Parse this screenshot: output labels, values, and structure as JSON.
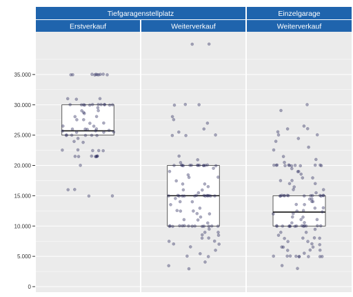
{
  "chart_data": {
    "type": "box-jitter",
    "title": "",
    "xlabel": "",
    "ylabel": "",
    "ylim": [
      0,
      40000
    ],
    "y_ticks": [
      {
        "value": 0,
        "label": "0"
      },
      {
        "value": 5000,
        "label": "5.000"
      },
      {
        "value": 10000,
        "label": "10.000"
      },
      {
        "value": 15000,
        "label": "15.000"
      },
      {
        "value": 20000,
        "label": "20.000"
      },
      {
        "value": 25000,
        "label": "25.000"
      },
      {
        "value": 30000,
        "label": "30.000"
      },
      {
        "value": 35000,
        "label": "35.000"
      }
    ],
    "groups": [
      {
        "name": "Tiefgaragenstellplatz",
        "panels": [
          "Erstverkauf",
          "Weiterverkauf"
        ]
      },
      {
        "name": "Einzelgarage",
        "panels": [
          "Weiterverkauf"
        ]
      }
    ],
    "panels": [
      {
        "group": "Tiefgaragenstellplatz",
        "label": "Erstverkauf",
        "box": {
          "q1": 25000,
          "median": 25700,
          "q3": 30000
        },
        "points": [
          35000,
          35000,
          35000,
          35000,
          35000,
          35000,
          35000,
          35000,
          35000,
          35000,
          31000,
          31000,
          30900,
          30000,
          30000,
          30000,
          30000,
          30000,
          30000,
          30000,
          30000,
          30000,
          30000,
          30000,
          30000,
          29500,
          29000,
          29000,
          28800,
          28500,
          28000,
          28000,
          27500,
          27500,
          27000,
          27000,
          26500,
          26500,
          26000,
          26000,
          26000,
          26000,
          25800,
          25700,
          25700,
          25500,
          25500,
          25500,
          25000,
          25000,
          25000,
          25000,
          25000,
          25000,
          24500,
          24000,
          23800,
          22500,
          22500,
          22500,
          22500,
          22500,
          21500,
          21500,
          21500,
          21500,
          21500,
          21500,
          21500,
          21500,
          20000,
          16000,
          16000,
          15000,
          15000
        ]
      },
      {
        "group": "Tiefgaragenstellplatz",
        "label": "Weiterverkauf",
        "box": {
          "q1": 10000,
          "median": 15000,
          "q3": 20000
        },
        "points": [
          40000,
          40000,
          30000,
          30000,
          30000,
          28000,
          27500,
          27000,
          26000,
          25500,
          25000,
          25000,
          25000,
          21500,
          21000,
          20500,
          20000,
          20000,
          20000,
          20000,
          20000,
          20000,
          20000,
          20000,
          20000,
          20000,
          20000,
          20000,
          20000,
          20000,
          19500,
          19000,
          18500,
          18000,
          18000,
          17500,
          17000,
          17000,
          16500,
          16000,
          16000,
          15500,
          15000,
          15000,
          15000,
          15000,
          15000,
          15000,
          15000,
          15000,
          15000,
          15000,
          15000,
          15000,
          15000,
          15000,
          14500,
          14000,
          14000,
          13500,
          13000,
          12500,
          12500,
          12500,
          12000,
          12000,
          11500,
          11000,
          11000,
          10500,
          10000,
          10000,
          10000,
          10000,
          10000,
          10000,
          10000,
          10000,
          10000,
          10000,
          10000,
          10000,
          10000,
          10000,
          9500,
          9000,
          9000,
          8500,
          8500,
          8000,
          8000,
          7500,
          7500,
          7000,
          7000,
          6500,
          6000,
          5500,
          5000,
          5000,
          4000,
          3500,
          3000
        ]
      },
      {
        "group": "Einzelgarage",
        "label": "Weiterverkauf",
        "box": {
          "q1": 10000,
          "median": 12300,
          "q3": 15000
        },
        "points": [
          30000,
          29000,
          26500,
          26000,
          26000,
          25500,
          25000,
          25000,
          24500,
          24000,
          23000,
          22500,
          21500,
          21000,
          20500,
          20000,
          20000,
          20000,
          20000,
          20000,
          20000,
          20000,
          20000,
          20000,
          20000,
          20000,
          20000,
          19500,
          19000,
          19000,
          18500,
          18000,
          18000,
          17500,
          17500,
          17000,
          17000,
          16500,
          16000,
          16000,
          15500,
          15000,
          15000,
          15000,
          15000,
          15000,
          15000,
          15000,
          15000,
          15000,
          15000,
          15000,
          15000,
          15000,
          15000,
          14500,
          14500,
          14000,
          14000,
          13500,
          13500,
          13000,
          13000,
          12500,
          12500,
          12300,
          12000,
          12000,
          11500,
          11500,
          11000,
          11000,
          10500,
          10500,
          10000,
          10000,
          10000,
          10000,
          10000,
          10000,
          10000,
          10000,
          10000,
          10000,
          10000,
          10000,
          10000,
          10000,
          9500,
          9000,
          9000,
          8500,
          8000,
          8000,
          8000,
          8000,
          7500,
          7500,
          7000,
          7000,
          6500,
          6500,
          6500,
          6000,
          6000,
          6000,
          5500,
          5000,
          5000,
          5000,
          5000,
          5000,
          5000,
          5000,
          5000,
          5000,
          3500,
          3000
        ]
      }
    ],
    "colors": {
      "strip_bg": "#1f64ad",
      "strip_text": "#ffffff",
      "panel_bg": "#ebebeb",
      "grid": "#ffffff",
      "point": "#2d2d5e",
      "box_fill": "#ffffff",
      "box_line": "#333333"
    },
    "grid": true,
    "legend": "none"
  }
}
